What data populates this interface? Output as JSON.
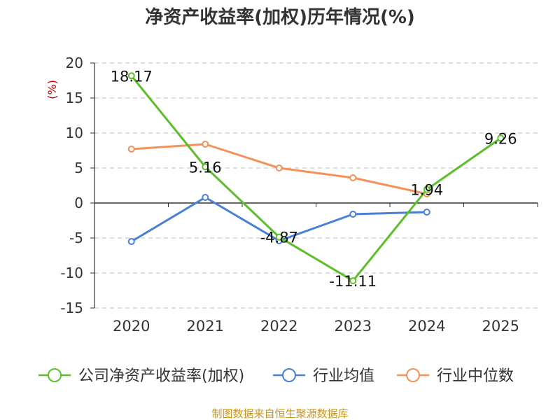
{
  "chart_data": {
    "type": "line",
    "title": "净资产收益率(加权)历年情况(%)",
    "ylabel": "(%)",
    "xlabel": "",
    "categories": [
      "2020",
      "2021",
      "2022",
      "2023",
      "2024",
      "2025"
    ],
    "ylim": [
      -15,
      20
    ],
    "yticks": [
      "20",
      "15",
      "10",
      "5",
      "0",
      "-5",
      "-10",
      "-15"
    ],
    "grid": true,
    "legend_position": "bottom",
    "series": [
      {
        "name": "公司净资产收益率(加权)",
        "color": "#5cbf2a",
        "values": [
          18.17,
          5.16,
          -4.87,
          -11.11,
          1.94,
          9.26
        ],
        "labels": [
          "18.17",
          "5.16",
          "-4.87",
          "-11.11",
          "1.94",
          "9.26"
        ]
      },
      {
        "name": "行业均值",
        "color": "#4a7fd6",
        "values": [
          -5.5,
          0.8,
          -5.4,
          -1.6,
          -1.3,
          null
        ]
      },
      {
        "name": "行业中位数",
        "color": "#f59158",
        "values": [
          7.7,
          8.4,
          5.0,
          3.6,
          1.3,
          null
        ]
      }
    ]
  },
  "source": "制图数据来自恒生聚源数据库"
}
